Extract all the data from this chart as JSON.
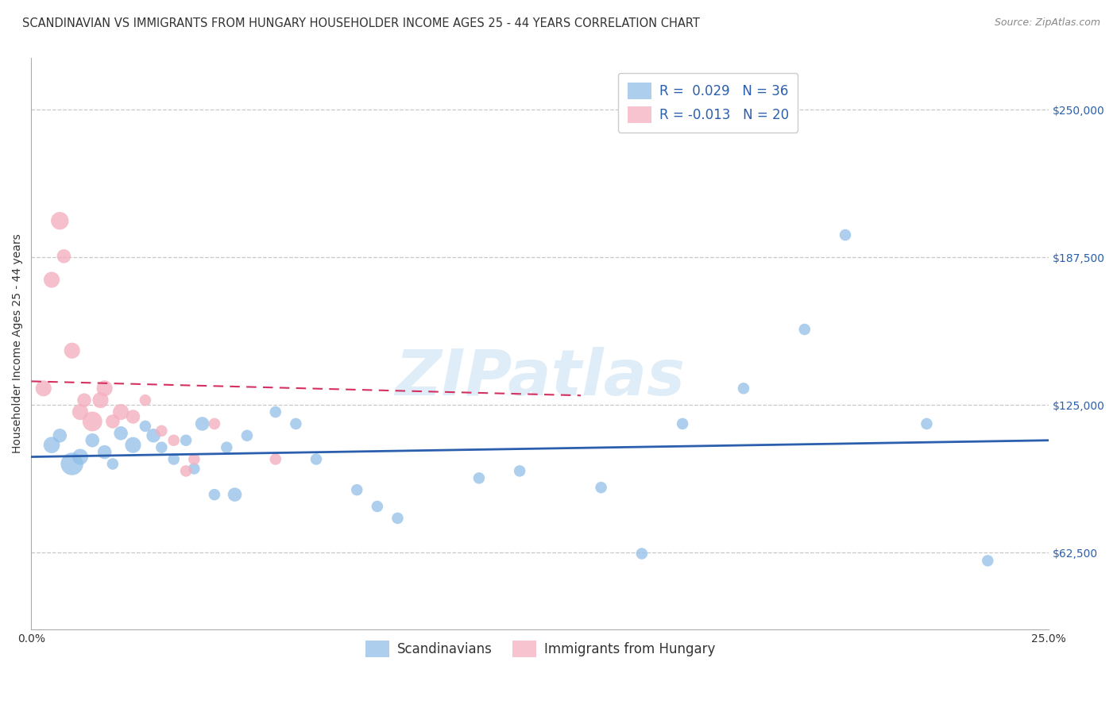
{
  "title": "SCANDINAVIAN VS IMMIGRANTS FROM HUNGARY HOUSEHOLDER INCOME AGES 25 - 44 YEARS CORRELATION CHART",
  "source": "Source: ZipAtlas.com",
  "ylabel": "Householder Income Ages 25 - 44 years",
  "yticks": [
    62500,
    125000,
    187500,
    250000
  ],
  "ytick_labels": [
    "$62,500",
    "$125,000",
    "$187,500",
    "$250,000"
  ],
  "xlim": [
    0.0,
    0.25
  ],
  "ylim": [
    30000,
    272000
  ],
  "watermark": "ZIPatlas",
  "legend_blue_r": "R =  0.029",
  "legend_blue_n": "N = 36",
  "legend_pink_r": "R = -0.013",
  "legend_pink_n": "N = 20",
  "legend_blue_label": "Scandinavians",
  "legend_pink_label": "Immigrants from Hungary",
  "blue_color": "#92c0e8",
  "pink_color": "#f4afc0",
  "blue_line_color": "#2b5fad",
  "pink_line_color": "#d43060",
  "r_n_color": "#2b5fad",
  "scatter_blue_x": [
    0.005,
    0.007,
    0.01,
    0.012,
    0.015,
    0.018,
    0.02,
    0.022,
    0.025,
    0.028,
    0.03,
    0.032,
    0.035,
    0.038,
    0.04,
    0.042,
    0.045,
    0.048,
    0.05,
    0.053,
    0.06,
    0.065,
    0.07,
    0.08,
    0.085,
    0.09,
    0.11,
    0.12,
    0.14,
    0.15,
    0.16,
    0.175,
    0.19,
    0.2,
    0.22,
    0.235
  ],
  "scatter_blue_y": [
    108000,
    112000,
    100000,
    103000,
    110000,
    105000,
    100000,
    113000,
    108000,
    116000,
    112000,
    107000,
    102000,
    110000,
    98000,
    117000,
    87000,
    107000,
    87000,
    112000,
    122000,
    117000,
    102000,
    89000,
    82000,
    77000,
    94000,
    97000,
    90000,
    62000,
    117000,
    132000,
    157000,
    197000,
    117000,
    59000
  ],
  "scatter_blue_sizes": [
    220,
    160,
    420,
    210,
    160,
    160,
    110,
    160,
    210,
    110,
    160,
    110,
    110,
    110,
    110,
    160,
    110,
    110,
    160,
    110,
    110,
    110,
    110,
    110,
    110,
    110,
    110,
    110,
    110,
    110,
    110,
    110,
    110,
    110,
    110,
    110
  ],
  "scatter_pink_x": [
    0.003,
    0.005,
    0.007,
    0.008,
    0.01,
    0.012,
    0.013,
    0.015,
    0.017,
    0.018,
    0.02,
    0.022,
    0.025,
    0.028,
    0.032,
    0.035,
    0.038,
    0.04,
    0.045,
    0.06
  ],
  "scatter_pink_y": [
    132000,
    178000,
    203000,
    188000,
    148000,
    122000,
    127000,
    118000,
    127000,
    132000,
    118000,
    122000,
    120000,
    127000,
    114000,
    110000,
    97000,
    102000,
    117000,
    102000
  ],
  "scatter_pink_sizes": [
    210,
    210,
    260,
    160,
    210,
    210,
    160,
    320,
    210,
    210,
    160,
    210,
    160,
    110,
    110,
    110,
    110,
    110,
    110,
    110
  ],
  "blue_trend_x": [
    0.0,
    0.25
  ],
  "blue_trend_y": [
    103000,
    110000
  ],
  "pink_trend_x": [
    0.0,
    0.135
  ],
  "pink_trend_y": [
    135000,
    129000
  ],
  "grid_color": "#c8c8c8",
  "background_color": "#ffffff",
  "title_fontsize": 10.5,
  "axis_label_fontsize": 10,
  "tick_label_fontsize": 10,
  "legend_fontsize": 12,
  "source_fontsize": 9
}
